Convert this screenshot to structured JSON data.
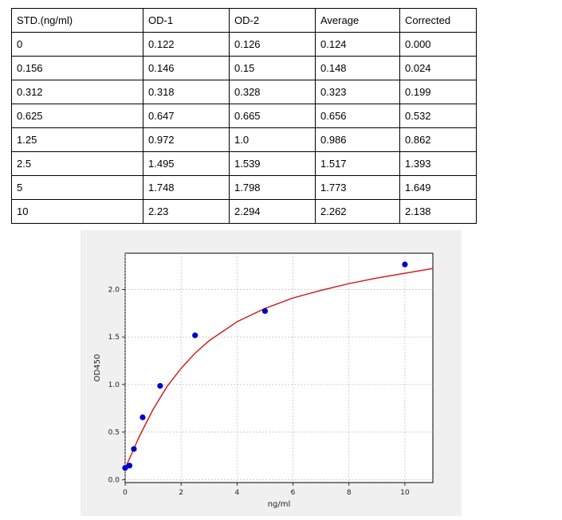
{
  "table": {
    "headers": [
      "STD.(ng/ml)",
      "OD-1",
      "OD-2",
      "Average",
      "Corrected"
    ],
    "rows": [
      [
        "0",
        "0.122",
        "0.126",
        "0.124",
        "0.000"
      ],
      [
        "0.156",
        "0.146",
        "0.15",
        "0.148",
        "0.024"
      ],
      [
        "0.312",
        "0.318",
        "0.328",
        "0.323",
        "0.199"
      ],
      [
        "0.625",
        "0.647",
        "0.665",
        "0.656",
        "0.532"
      ],
      [
        "1.25",
        "0.972",
        "1.0",
        "0.986",
        "0.862"
      ],
      [
        "2.5",
        "1.495",
        "1.539",
        "1.517",
        "1.393"
      ],
      [
        "5",
        "1.748",
        "1.798",
        "1.773",
        "1.649"
      ],
      [
        "10",
        "2.23",
        "2.294",
        "2.262",
        "2.138"
      ]
    ]
  },
  "chart_data": {
    "type": "scatter",
    "title": "",
    "xlabel": "ng/ml",
    "ylabel": "OD450",
    "xlim": [
      0,
      11
    ],
    "ylim": [
      -0.03,
      2.38
    ],
    "xticks": [
      0,
      2,
      4,
      6,
      8,
      10
    ],
    "yticks": [
      0.0,
      0.5,
      1.0,
      1.5,
      2.0
    ],
    "grid": true,
    "series": [
      {
        "kind": "points",
        "color": "#0000cc",
        "x": [
          0,
          0.156,
          0.312,
          0.625,
          1.25,
          2.5,
          5,
          10
        ],
        "y": [
          0.124,
          0.148,
          0.323,
          0.656,
          0.986,
          1.517,
          1.773,
          2.262
        ]
      },
      {
        "kind": "fit-curve",
        "color": "#cc2222",
        "x": [
          0,
          0.2,
          0.5,
          1,
          1.5,
          2,
          2.5,
          3,
          4,
          5,
          6,
          7,
          8,
          9,
          10,
          11
        ],
        "y": [
          0.12,
          0.25,
          0.45,
          0.74,
          0.98,
          1.17,
          1.33,
          1.46,
          1.66,
          1.8,
          1.91,
          1.99,
          2.06,
          2.12,
          2.17,
          2.22
        ]
      }
    ]
  }
}
